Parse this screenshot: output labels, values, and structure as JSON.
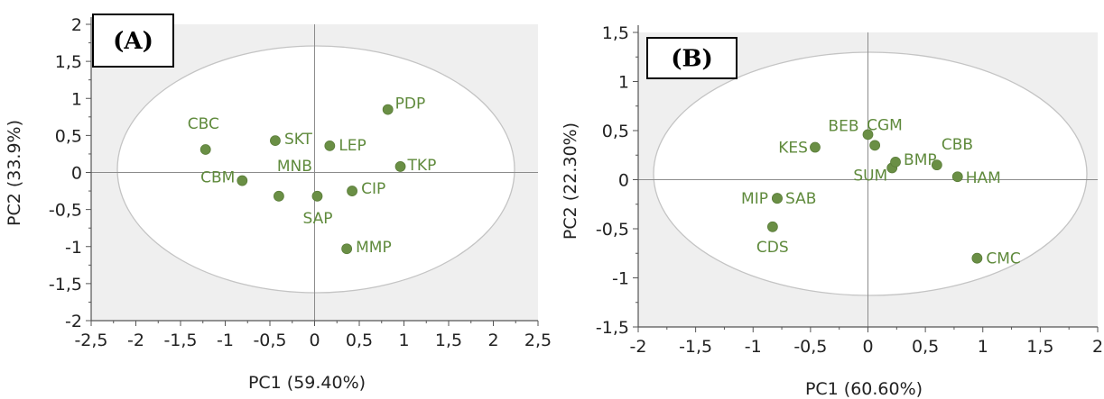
{
  "chart_data": [
    {
      "type": "scatter",
      "panel_label": "(A)",
      "xlabel": "PC1 (59.40%)",
      "ylabel": "PC2 (33.9%)",
      "xlim": [
        -2.5,
        2.5
      ],
      "ylim": [
        -2,
        2
      ],
      "xticks": [
        "-2,5",
        "-2",
        "-1,5",
        "-1",
        "-0,5",
        "0",
        "0,5",
        "1",
        "1,5",
        "2",
        "2,5"
      ],
      "yticks": [
        "2",
        "1,5",
        "1",
        "0,5",
        "0",
        "-0,5",
        "-1",
        "-1,5",
        "-2"
      ],
      "grid": false,
      "zero_lines": true,
      "points": [
        {
          "label": "PDP",
          "x": 0.82,
          "y": 0.85
        },
        {
          "label": "CBC",
          "x": -1.22,
          "y": 0.31
        },
        {
          "label": "SKT",
          "x": -0.44,
          "y": 0.43
        },
        {
          "label": "LEP",
          "x": 0.17,
          "y": 0.36
        },
        {
          "label": "TKP",
          "x": 0.96,
          "y": 0.08
        },
        {
          "label": "CBM",
          "x": -0.81,
          "y": -0.11
        },
        {
          "label": "MNB",
          "x": -0.4,
          "y": -0.32
        },
        {
          "label": "SAP",
          "x": 0.03,
          "y": -0.32
        },
        {
          "label": "CIP",
          "x": 0.42,
          "y": -0.25
        },
        {
          "label": "MMP",
          "x": 0.36,
          "y": -1.03
        }
      ]
    },
    {
      "type": "scatter",
      "panel_label": "(B)",
      "xlabel": "PC1 (60.60%)",
      "ylabel": "PC2 (22.30%)",
      "xlim": [
        -2,
        2
      ],
      "ylim": [
        -1.5,
        1.5
      ],
      "xticks": [
        "-2",
        "-1,5",
        "-1",
        "-0,5",
        "0",
        "0,5",
        "1",
        "1,5",
        "2"
      ],
      "yticks": [
        "1,5",
        "1",
        "0,5",
        "0",
        "-0,5",
        "-1",
        "-1,5"
      ],
      "grid": false,
      "zero_lines": true,
      "points": [
        {
          "label": "BEB",
          "x": 0.0,
          "y": 0.46
        },
        {
          "label": "CGM",
          "x": 0.06,
          "y": 0.35
        },
        {
          "label": "KES",
          "x": -0.46,
          "y": 0.33
        },
        {
          "label": "CBB",
          "x": 0.6,
          "y": 0.15
        },
        {
          "label": "SUM",
          "x": 0.21,
          "y": 0.12
        },
        {
          "label": "BMP",
          "x": 0.24,
          "y": 0.18
        },
        {
          "label": "HAM",
          "x": 0.78,
          "y": 0.03
        },
        {
          "label": "MIP",
          "x": -0.79,
          "y": -0.19
        },
        {
          "label": "SAB",
          "x": -0.79,
          "y": -0.19
        },
        {
          "label": "CDS",
          "x": -0.83,
          "y": -0.48
        },
        {
          "label": "CMC",
          "x": 0.95,
          "y": -0.8
        }
      ]
    }
  ]
}
